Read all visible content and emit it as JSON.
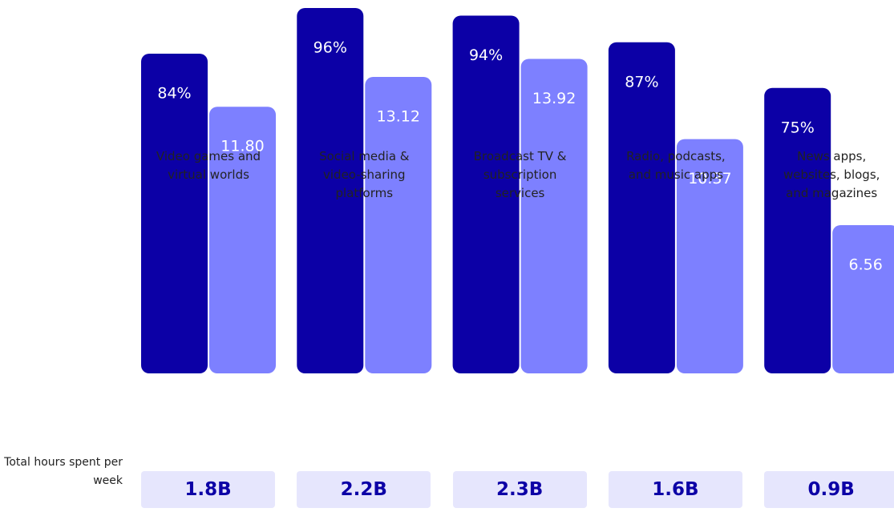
{
  "chart_data": {
    "type": "bar",
    "categories": [
      "Video games and virtual worlds",
      "Social media & video-sharing platforms",
      "Broadcast TV & subscription services",
      "Radio, podcasts, and music apps",
      "News apps, websites, blogs, and magazines"
    ],
    "series": [
      {
        "color": "#0c00a6",
        "values": [
          84,
          96,
          94,
          87,
          75
        ],
        "value_labels": [
          "84%",
          "96%",
          "94%",
          "87%",
          "75%"
        ]
      },
      {
        "color": "#7d80ff",
        "values": [
          11.8,
          13.12,
          13.92,
          10.37,
          6.56
        ],
        "value_labels": [
          "11.80",
          "13.12",
          "13.92",
          "10.37",
          "6.56"
        ]
      }
    ],
    "totals": {
      "label": "Total hours spent per week",
      "values": [
        1800000000,
        2200000000,
        2300000000,
        1600000000,
        900000000
      ],
      "value_labels": [
        "1.8B",
        "2.2B",
        "2.3B",
        "1.6B",
        "0.9B"
      ]
    }
  }
}
